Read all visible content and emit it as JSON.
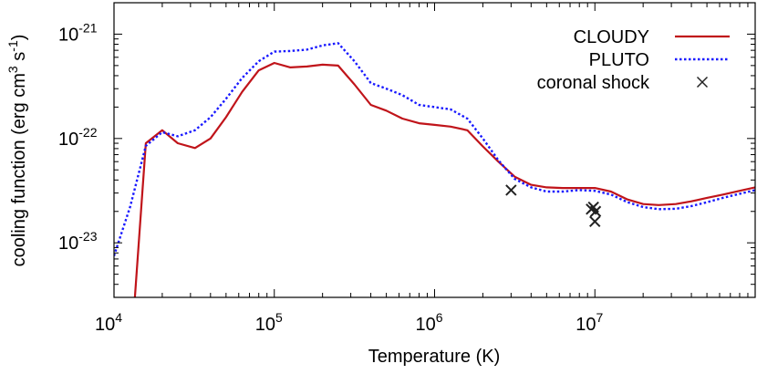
{
  "chart_data": {
    "type": "line",
    "title": "",
    "xlabel": "Temperature (K)",
    "ylabel_parts": {
      "main": "cooling function (erg cm",
      "exp1": "3",
      "mid": " s",
      "exp2": "-1",
      "end": ")"
    },
    "x_scale": "log",
    "y_scale": "log",
    "xlim": [
      10000,
      100000000
    ],
    "ylim": [
      3e-24,
      2e-21
    ],
    "grid": false,
    "legend_position": "top-right",
    "x_ticks": [
      {
        "value": 10000,
        "base": "10",
        "exp": "4"
      },
      {
        "value": 100000,
        "base": "10",
        "exp": "5"
      },
      {
        "value": 1000000,
        "base": "10",
        "exp": "6"
      },
      {
        "value": 10000000,
        "base": "10",
        "exp": "7"
      }
    ],
    "y_ticks": [
      {
        "value": 1e-23,
        "base": "10",
        "exp": "-23"
      },
      {
        "value": 1e-22,
        "base": "10",
        "exp": "-22"
      },
      {
        "value": 1e-21,
        "base": "10",
        "exp": "-21"
      }
    ],
    "series": [
      {
        "name": "CLOUDY",
        "kind": "line",
        "style": "solid",
        "color": "#c0141a",
        "x": [
          13500,
          15800,
          20000,
          25000,
          32000,
          40000,
          50000,
          63000,
          80000,
          100000,
          126000,
          160000,
          200000,
          250000,
          316000,
          400000,
          500000,
          630000,
          800000,
          1000000,
          1260000,
          1600000,
          2000000,
          2500000,
          3160000,
          4000000,
          5000000,
          6300000,
          8000000,
          10000000,
          12600000,
          16000000,
          20000000,
          25000000,
          32000000,
          40000000,
          50000000,
          63000000,
          80000000,
          100000000
        ],
        "y": [
          3e-24,
          9e-23,
          1.2e-22,
          9e-23,
          8.1e-23,
          1e-22,
          1.6e-22,
          2.8e-22,
          4.5e-22,
          5.3e-22,
          4.8e-22,
          4.9e-22,
          5.1e-22,
          5e-22,
          3.3e-22,
          2.1e-22,
          1.85e-22,
          1.55e-22,
          1.4e-22,
          1.35e-22,
          1.3e-22,
          1.2e-22,
          8.4e-23,
          6e-23,
          4.3e-23,
          3.6e-23,
          3.4e-23,
          3.35e-23,
          3.35e-23,
          3.35e-23,
          3.1e-23,
          2.6e-23,
          2.35e-23,
          2.3e-23,
          2.35e-23,
          2.5e-23,
          2.7e-23,
          2.9e-23,
          3.15e-23,
          3.4e-23
        ]
      },
      {
        "name": "PLUTO",
        "kind": "line",
        "style": "dotted",
        "color": "#1a1aff",
        "x": [
          10000,
          12600,
          15800,
          20000,
          25000,
          32000,
          40000,
          50000,
          63000,
          80000,
          100000,
          126000,
          160000,
          200000,
          250000,
          316000,
          400000,
          500000,
          630000,
          800000,
          1000000,
          1260000,
          1600000,
          2000000,
          2500000,
          3160000,
          4000000,
          5000000,
          6300000,
          8000000,
          10000000,
          12600000,
          16000000,
          20000000,
          25000000,
          32000000,
          40000000,
          50000000,
          63000000,
          80000000,
          100000000
        ],
        "y": [
          7.5e-24,
          2.2e-23,
          8.5e-23,
          1.15e-22,
          1.05e-22,
          1.2e-22,
          1.6e-22,
          2.4e-22,
          3.8e-22,
          5.5e-22,
          6.8e-22,
          6.9e-22,
          7.1e-22,
          7.8e-22,
          8.2e-22,
          5.5e-22,
          3.4e-22,
          3e-22,
          2.6e-22,
          2.1e-22,
          2e-22,
          1.9e-22,
          1.55e-22,
          1e-22,
          6.2e-23,
          4.1e-23,
          3.4e-23,
          3.1e-23,
          3.1e-23,
          3.2e-23,
          3.15e-23,
          2.9e-23,
          2.45e-23,
          2.2e-23,
          2.1e-23,
          2.12e-23,
          2.25e-23,
          2.45e-23,
          2.7e-23,
          2.95e-23,
          3.2e-23
        ]
      },
      {
        "name": "coronal shock",
        "kind": "marker",
        "marker": "x",
        "color": "#222222",
        "x": [
          3000000,
          9500000,
          9800000,
          10100000,
          10000000
        ],
        "y": [
          3.2e-23,
          2.1e-23,
          2.2e-23,
          2e-23,
          1.6e-23
        ]
      }
    ]
  }
}
